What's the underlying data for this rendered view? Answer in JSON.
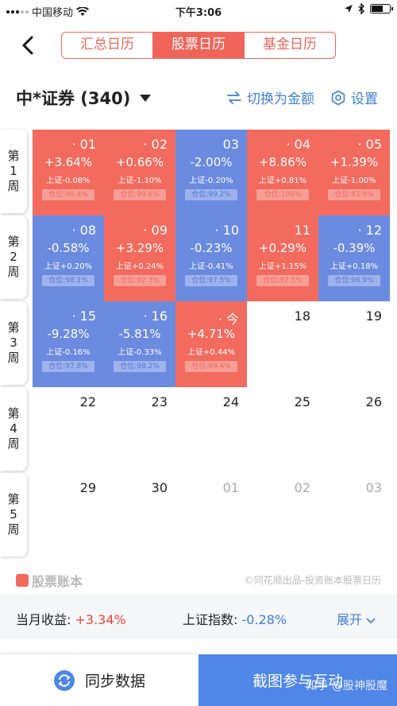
{
  "status": {
    "carrier": "中国移动",
    "time": "下午3:06"
  },
  "tabs": [
    {
      "label": "汇总日历",
      "active": false
    },
    {
      "label": "股票日历",
      "active": true
    },
    {
      "label": "基金日历",
      "active": false
    }
  ],
  "header": {
    "title": "中*证券 (340)",
    "toggle_label": "切换为金额",
    "settings_label": "设置"
  },
  "weeks": [
    {
      "label": [
        "第",
        "1",
        "周"
      ]
    },
    {
      "label": [
        "第",
        "2",
        "周"
      ]
    },
    {
      "label": [
        "第",
        "3",
        "周"
      ]
    },
    {
      "label": [
        "第",
        "4",
        "周"
      ]
    },
    {
      "label": [
        "第",
        "5",
        "周"
      ]
    }
  ],
  "calendar": [
    [
      {
        "date": "· 01",
        "pct": "+3.64%",
        "index": "上证-0.08%",
        "position": "仓位:99.4%",
        "color": "red"
      },
      {
        "date": "· 02",
        "pct": "+0.66%",
        "index": "上证-1.10%",
        "position": "仓位:99.6%",
        "color": "red"
      },
      {
        "date": "03",
        "pct": "-2.00%",
        "index": "上证-0.20%",
        "position": "仓位:99.2%",
        "color": "blue"
      },
      {
        "date": "· 04",
        "pct": "+8.86%",
        "index": "上证+0.81%",
        "position": "仓位:100%",
        "color": "red"
      },
      {
        "date": "· 05",
        "pct": "+1.39%",
        "index": "上证-1.00%",
        "position": "仓位:81.9%",
        "color": "red"
      }
    ],
    [
      {
        "date": "· 08",
        "pct": "-0.58%",
        "index": "上证+0.20%",
        "position": "仓位:98.1%",
        "color": "blue"
      },
      {
        "date": "· 09",
        "pct": "+3.29%",
        "index": "上证+0.24%",
        "position": "仓位:92.3%",
        "color": "red"
      },
      {
        "date": "· 10",
        "pct": "-0.23%",
        "index": "上证-0.41%",
        "position": "仓位:97.5%",
        "color": "blue"
      },
      {
        "date": "11",
        "pct": "+0.29%",
        "index": "上证+1.15%",
        "position": "仓位:97.5%",
        "color": "red"
      },
      {
        "date": "· 12",
        "pct": "-0.39%",
        "index": "上证+0.18%",
        "position": "仓位:96.9%",
        "color": "blue"
      }
    ],
    [
      {
        "date": "· 15",
        "pct": "-9.28%",
        "index": "上证-0.16%",
        "position": "仓位:97.8%",
        "color": "blue"
      },
      {
        "date": "· 16",
        "pct": "-5.81%",
        "index": "上证-0.33%",
        "position": "仓位:98.2%",
        "color": "blue"
      },
      {
        "date": "· 今",
        "pct": "+4.71%",
        "index": "上证+0.44%",
        "position": "仓位:99.4%",
        "color": "red"
      },
      {
        "date": "18",
        "color": "empty"
      },
      {
        "date": "19",
        "color": "empty"
      }
    ],
    [
      {
        "date": "22",
        "color": "empty"
      },
      {
        "date": "23",
        "color": "empty"
      },
      {
        "date": "24",
        "color": "empty"
      },
      {
        "date": "25",
        "color": "empty"
      },
      {
        "date": "26",
        "color": "empty"
      }
    ],
    [
      {
        "date": "29",
        "color": "empty"
      },
      {
        "date": "30",
        "color": "empty"
      },
      {
        "date": "01",
        "color": "empty",
        "dim": true
      },
      {
        "date": "02",
        "color": "empty",
        "dim": true
      },
      {
        "date": "03",
        "color": "empty",
        "dim": true
      }
    ]
  ],
  "brand": {
    "name": "股票账本",
    "credit": "©同花顺出品-投资账本股票日历"
  },
  "summary": {
    "monthly_label": "当月收益:",
    "monthly_value": "+3.34%",
    "index_label": "上证指数:",
    "index_value": "-0.28%",
    "expand_label": "展开"
  },
  "bottom": {
    "sync_label": "同步数据",
    "share_label": "截图参与互动",
    "watermark": "知乎 @股神股魔"
  },
  "colors": {
    "red": "#f36b5e",
    "blue": "#6b8be0",
    "accent_blue": "#3f7fd6"
  }
}
